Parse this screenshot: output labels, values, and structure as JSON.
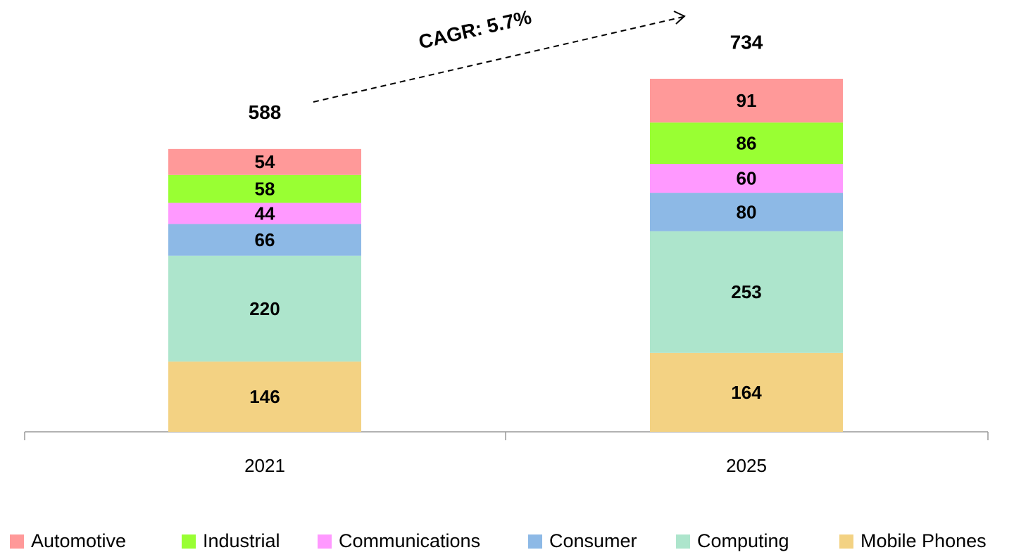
{
  "chart_data": {
    "type": "stacked_bar",
    "categories": [
      "2021",
      "2025"
    ],
    "series": [
      {
        "name": "Mobile Phones",
        "color": "#f3d283",
        "values": [
          146,
          164
        ]
      },
      {
        "name": "Computing",
        "color": "#ade5cc",
        "values": [
          220,
          253
        ]
      },
      {
        "name": "Consumer",
        "color": "#8db9e6",
        "values": [
          66,
          80
        ]
      },
      {
        "name": "Communications",
        "color": "#ff99ff",
        "values": [
          44,
          60
        ]
      },
      {
        "name": "Industrial",
        "color": "#99ff33",
        "values": [
          58,
          86
        ]
      },
      {
        "name": "Automotive",
        "color": "#ff9999",
        "values": [
          54,
          91
        ]
      }
    ],
    "totals": [
      588,
      734
    ],
    "annotation": "CAGR: 5.7%"
  }
}
